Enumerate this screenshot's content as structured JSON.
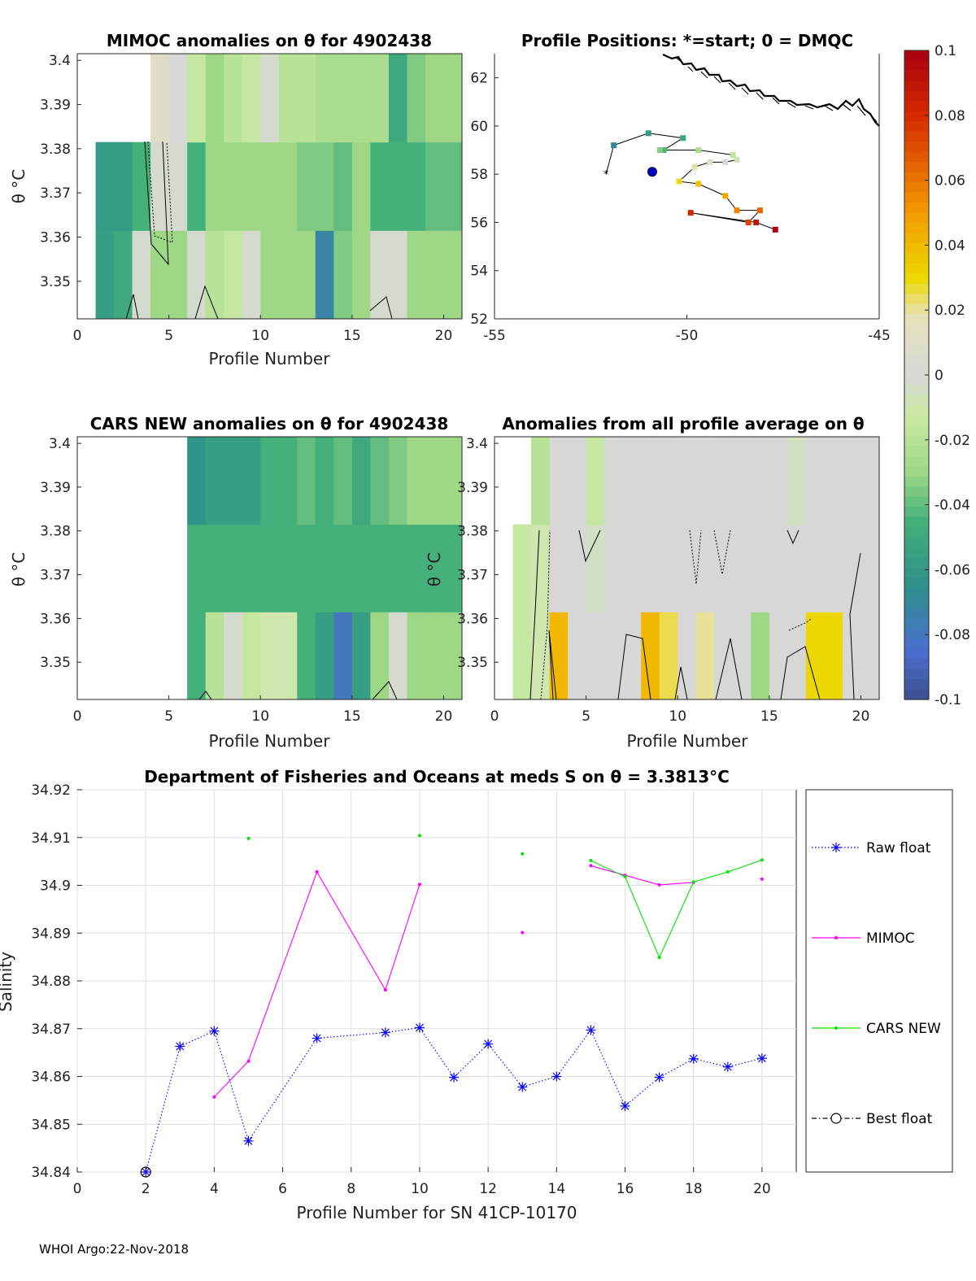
{
  "figure": {
    "footer": "WHOI Argo:22-Nov-2018",
    "float_id": "4902438",
    "sn_label": "Profile Number for SN 41CP-10170"
  },
  "panel_mimoc": {
    "title": "MIMOC anomalies on θ  for 4902438",
    "xlabel": "Profile Number",
    "ylabel": "θ °C",
    "xticks": [
      "0",
      "5",
      "10",
      "15",
      "20"
    ],
    "yticks": [
      "3.4",
      "3.39",
      "3.38",
      "3.37",
      "3.36",
      "3.35"
    ]
  },
  "panel_positions": {
    "title": "Profile Positions: *=start; 0 = DMQC",
    "xticks": [
      "-55",
      "-50",
      "-45"
    ],
    "yticks": [
      "62",
      "60",
      "58",
      "56",
      "54",
      "52"
    ]
  },
  "panel_cars": {
    "title": "CARS NEW anomalies on θ for 4902438",
    "xlabel": "Profile Number",
    "ylabel": "θ °C",
    "xticks": [
      "0",
      "5",
      "10",
      "15",
      "20"
    ],
    "yticks": [
      "3.4",
      "3.39",
      "3.38",
      "3.37",
      "3.36",
      "3.35"
    ]
  },
  "panel_allavg": {
    "title": "Anomalies from all profile average on θ",
    "xlabel": "Profile Number",
    "ylabel": "θ °C",
    "xticks": [
      "0",
      "5",
      "10",
      "15",
      "20"
    ],
    "yticks": [
      "3.4",
      "3.39",
      "3.38",
      "3.37",
      "3.36",
      "3.35"
    ]
  },
  "colorbar": {
    "ticks": [
      "0.1",
      "0.08",
      "0.06",
      "0.04",
      "0.02",
      "0",
      "-0.02",
      "-0.04",
      "-0.06",
      "-0.08",
      "-0.1"
    ],
    "colors": {
      "bottom": "#3d4f8f",
      "blue": "#4b6fcf",
      "teal": "#2e8f8a",
      "green": "#45b07a",
      "lightgreen": "#9ed887",
      "palegreen": "#cdeaa6",
      "grey": "#d7d7d7",
      "cream": "#e6e2b8",
      "yellow": "#ecd800",
      "orange": "#f39a00",
      "red": "#d62a00",
      "darkred": "#a80012"
    }
  },
  "panel_salinity": {
    "title": "Department of Fisheries and Oceans at meds S on θ = 3.3813°C",
    "xlabel": "Profile Number for SN 41CP-10170",
    "ylabel": "Salinity",
    "xticks": [
      "0",
      "2",
      "4",
      "6",
      "8",
      "10",
      "12",
      "14",
      "16",
      "18",
      "20"
    ],
    "yticks": [
      "34.92",
      "34.91",
      "34.9",
      "34.89",
      "34.88",
      "34.87",
      "34.86",
      "34.85",
      "34.84"
    ],
    "legend": {
      "raw": "Raw float",
      "mimoc": "MIMOC",
      "cars": "CARS NEW",
      "best": "Best float"
    }
  },
  "chart_data": [
    {
      "type": "heatmap",
      "title": "MIMOC anomalies on θ  for 4902438",
      "xlabel": "Profile Number",
      "ylabel": "θ °C",
      "xlim": [
        0,
        21
      ],
      "ylim": [
        3.3415,
        3.4015
      ],
      "profiles": [
        1,
        2,
        3,
        4,
        5,
        6,
        7,
        8,
        9,
        10,
        11,
        12,
        13,
        14,
        15,
        16,
        17,
        18,
        19,
        20
      ],
      "theta_bands": [
        [
          3.3415,
          3.3615
        ],
        [
          3.3615,
          3.3815
        ],
        [
          3.3815,
          3.4015
        ]
      ],
      "anomaly_rows": [
        [
          -0.056,
          -0.05,
          -0.002,
          -0.03,
          -0.03,
          -0.002,
          -0.02,
          -0.015,
          -0.002,
          -0.03,
          -0.03,
          -0.03,
          -0.072,
          -0.035,
          -0.03,
          -0.002,
          -0.002,
          -0.03,
          -0.03,
          -0.03
        ],
        [
          -0.058,
          -0.058,
          -0.045,
          -0.002,
          -0.002,
          -0.045,
          -0.03,
          -0.03,
          -0.03,
          -0.03,
          -0.03,
          -0.035,
          -0.035,
          -0.04,
          -0.03,
          -0.045,
          -0.045,
          -0.045,
          -0.04,
          -0.04
        ],
        [
          null,
          null,
          null,
          0.01,
          0.0,
          -0.015,
          -0.03,
          -0.02,
          -0.015,
          -0.002,
          -0.02,
          -0.02,
          -0.025,
          -0.025,
          -0.025,
          -0.025,
          -0.05,
          -0.035,
          -0.03,
          -0.03
        ]
      ]
    },
    {
      "type": "scatter",
      "title": "Profile Positions: *=start; 0 = DMQC",
      "xlim": [
        -55,
        -45
      ],
      "ylim": [
        52,
        63
      ],
      "profile": [
        1,
        2,
        3,
        4,
        5,
        6,
        7,
        8,
        9,
        10,
        11,
        12,
        13,
        14,
        15,
        16,
        17,
        18,
        19,
        20
      ],
      "lon": [
        -51.9,
        -51.0,
        -50.1,
        -50.6,
        -50.7,
        -49.7,
        -48.8,
        -48.7,
        -49.0,
        -49.4,
        -49.8,
        -50.2,
        -49.7,
        -49.0,
        -48.7,
        -48.1,
        -48.4,
        -49.9,
        -48.2,
        -47.7
      ],
      "lat": [
        59.2,
        59.7,
        59.5,
        59.0,
        59.0,
        59.0,
        58.8,
        58.6,
        58.5,
        58.5,
        58.3,
        57.7,
        57.6,
        57.1,
        56.5,
        56.5,
        56.0,
        56.4,
        56.0,
        55.7
      ],
      "start": {
        "lon": -52.1,
        "lat": 58.0
      },
      "dmqc": {
        "lon": -50.9,
        "lat": 58.1
      }
    },
    {
      "type": "heatmap",
      "title": "CARS NEW anomalies on θ for 4902438",
      "xlabel": "Profile Number",
      "ylabel": "θ °C",
      "xlim": [
        0,
        21
      ],
      "ylim": [
        3.3415,
        3.4015
      ],
      "profiles": [
        1,
        2,
        3,
        4,
        5,
        6,
        7,
        8,
        9,
        10,
        11,
        12,
        13,
        14,
        15,
        16,
        17,
        18,
        19,
        20
      ],
      "theta_bands": [
        [
          3.3415,
          3.3615
        ],
        [
          3.3615,
          3.3815
        ],
        [
          3.3815,
          3.4015
        ]
      ],
      "anomaly_rows": [
        [
          null,
          null,
          null,
          null,
          null,
          -0.045,
          -0.02,
          -0.002,
          -0.015,
          -0.01,
          -0.01,
          -0.045,
          -0.056,
          -0.08,
          -0.056,
          -0.03,
          -0.002,
          -0.03,
          -0.03,
          -0.03
        ],
        [
          null,
          null,
          null,
          null,
          null,
          -0.045,
          -0.045,
          -0.045,
          -0.045,
          -0.045,
          -0.045,
          -0.045,
          -0.045,
          -0.045,
          -0.045,
          -0.045,
          -0.045,
          -0.045,
          -0.045,
          -0.045
        ],
        [
          null,
          null,
          null,
          null,
          null,
          -0.062,
          -0.056,
          -0.056,
          -0.056,
          -0.045,
          -0.045,
          -0.04,
          -0.045,
          -0.04,
          -0.05,
          -0.04,
          -0.035,
          -0.03,
          -0.03,
          -0.03
        ]
      ]
    },
    {
      "type": "heatmap",
      "title": "Anomalies from all profile average on θ",
      "xlabel": "Profile Number",
      "ylabel": "θ °C",
      "xlim": [
        0,
        21
      ],
      "ylim": [
        3.3415,
        3.4015
      ],
      "profiles": [
        1,
        2,
        3,
        4,
        5,
        6,
        7,
        8,
        9,
        10,
        11,
        12,
        13,
        14,
        15,
        16,
        17,
        18,
        19,
        20
      ],
      "theta_bands": [
        [
          3.3415,
          3.3615
        ],
        [
          3.3615,
          3.3815
        ],
        [
          3.3815,
          3.4015
        ]
      ],
      "anomaly_rows": [
        [
          -0.015,
          -0.01,
          0.04,
          0.0,
          0.0,
          0.0,
          0.0,
          0.04,
          0.025,
          0.0,
          0.02,
          0.0,
          0.0,
          -0.03,
          0.0,
          0.0,
          0.03,
          0.03,
          0.0,
          0.0
        ],
        [
          -0.015,
          -0.01,
          0.0,
          0.0,
          -0.005,
          0.0,
          0.0,
          0.0,
          0.0,
          0.0,
          0.0,
          0.0,
          0.0,
          0.0,
          0.0,
          0.0,
          0.0,
          0.0,
          0.0,
          0.0
        ],
        [
          null,
          -0.02,
          0.0,
          0.0,
          -0.015,
          0.002,
          0.0,
          0.0,
          0.0,
          0.002,
          0.002,
          0.0,
          0.0,
          0.0,
          0.0,
          -0.005,
          0.0,
          0.0,
          0.0,
          0.0
        ]
      ]
    },
    {
      "type": "line",
      "title": "Department of Fisheries and Oceans at meds S on θ = 3.3813°C",
      "xlabel": "Profile Number for SN 41CP-10170",
      "ylabel": "Salinity",
      "xlim": [
        0,
        21
      ],
      "ylim": [
        34.84,
        34.92
      ],
      "grid": true,
      "legend_position": "right",
      "series": [
        {
          "name": "Raw float",
          "color": "#0000ff",
          "style": "dotted",
          "marker": "*",
          "x": [
            2,
            3,
            4,
            5,
            7,
            9,
            10,
            11,
            12,
            13,
            14,
            15,
            16,
            17,
            18,
            19,
            20
          ],
          "y": [
            34.84,
            34.8663,
            34.8695,
            34.8465,
            34.868,
            34.8692,
            34.8702,
            34.8598,
            34.8668,
            34.8578,
            34.86,
            34.8697,
            34.8538,
            34.8598,
            34.8637,
            34.862,
            34.8638
          ]
        },
        {
          "name": "MIMOC",
          "color": "#ff00ff",
          "style": "solid",
          "marker": ".",
          "x": [
            4,
            5,
            7,
            9,
            10,
            13,
            15,
            16,
            17,
            18,
            20
          ],
          "y": [
            34.8557,
            34.8632,
            34.9028,
            34.8781,
            34.9002,
            34.8901,
            34.9041,
            34.9021,
            34.9001,
            34.9006,
            34.9013
          ],
          "connected": [
            [
              4,
              5,
              7,
              9,
              10
            ],
            [
              13
            ],
            [
              15,
              16,
              17,
              18
            ],
            [
              20
            ]
          ]
        },
        {
          "name": "CARS NEW",
          "color": "#00e600",
          "style": "solid",
          "marker": ".",
          "x": [
            5,
            10,
            13,
            15,
            16,
            17,
            18,
            19,
            20
          ],
          "y": [
            34.9098,
            34.9104,
            34.9066,
            34.9052,
            34.9018,
            34.8849,
            34.9007,
            34.9028,
            34.9053
          ],
          "connected": [
            [
              5
            ],
            [
              10
            ],
            [
              13
            ],
            [
              15,
              16,
              17,
              18,
              19,
              20
            ]
          ]
        },
        {
          "name": "Best float",
          "color": "#000000",
          "style": "dashdot",
          "marker": "o",
          "x": [
            2
          ],
          "y": [
            34.84
          ]
        }
      ]
    }
  ]
}
